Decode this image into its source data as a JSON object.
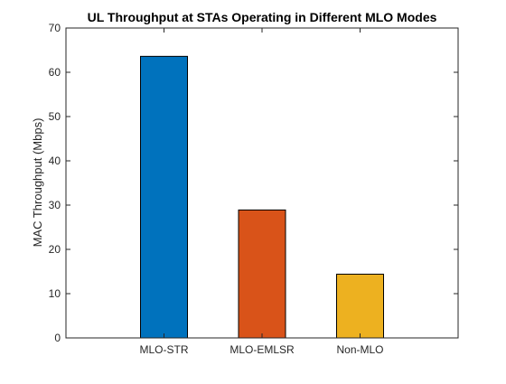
{
  "chart_data": {
    "type": "bar",
    "title": "UL Throughput at STAs Operating in Different MLO Modes",
    "xlabel": "",
    "ylabel": "MAC Throughput (Mbps)",
    "categories": [
      "MLO-STR",
      "MLO-EMLSR",
      "Non-MLO"
    ],
    "values": [
      63.6,
      28.9,
      14.4
    ],
    "bar_colors": [
      "#0072BD",
      "#D95319",
      "#EDB120"
    ],
    "ylim": [
      0,
      70
    ],
    "yticks": [
      0,
      10,
      20,
      30,
      40,
      50,
      60,
      70
    ],
    "grid": false,
    "legend": "none",
    "box": true
  }
}
